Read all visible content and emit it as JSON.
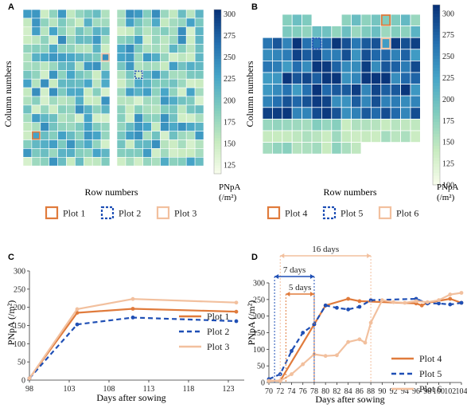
{
  "panels": {
    "a": "A",
    "b": "B",
    "c": "C",
    "d": "D"
  },
  "heatmap_common": {
    "xlabel": "Row numbers",
    "ylabel": "Column numbers",
    "colorbar_title": "PNpA",
    "colorbar_unit": "(/m²)"
  },
  "legend_ab": {
    "a_items": [
      {
        "label": "Plot 1",
        "color": "#e07b3c",
        "style": "solid"
      },
      {
        "label": "Plot 2",
        "color": "#1f4fb5",
        "style": "dashed"
      },
      {
        "label": "Plot 3",
        "color": "#f2c09e",
        "style": "solid"
      }
    ],
    "b_items": [
      {
        "label": "Plot 4",
        "color": "#e07b3c",
        "style": "solid"
      },
      {
        "label": "Plot 5",
        "color": "#1f4fb5",
        "style": "dashed"
      },
      {
        "label": "Plot 6",
        "color": "#f2c09e",
        "style": "solid"
      }
    ]
  },
  "chart_data": [
    {
      "type": "heatmap",
      "panel": "A",
      "xlabel": "Row numbers",
      "ylabel": "Column numbers",
      "colorbar_ticks": [
        125,
        150,
        175,
        200,
        225,
        250,
        275,
        300
      ],
      "colorbar_range": [
        115,
        305
      ],
      "grid": "2 blocks of 10 x 18 plots separated by an alley"
    },
    {
      "type": "heatmap",
      "panel": "B",
      "xlabel": "Row numbers",
      "ylabel": "Column numbers",
      "colorbar_ticks": [
        100,
        125,
        150,
        175,
        200,
        225,
        250,
        275,
        300
      ],
      "colorbar_range": [
        100,
        310
      ],
      "grid": "16 x 12 plots, top-left and bottom-right corners empty"
    },
    {
      "type": "line",
      "panel": "C",
      "xlabel": "Days after sowing",
      "ylabel": "PNpA (/m²)",
      "xlim": [
        98,
        125
      ],
      "ylim": [
        0,
        300
      ],
      "xticks": [
        98,
        103,
        108,
        113,
        118,
        123
      ],
      "yticks": [
        0,
        50,
        100,
        150,
        200,
        250,
        300
      ],
      "x": [
        98,
        104,
        111,
        124
      ],
      "series": [
        {
          "name": "Plot 1",
          "color": "#e07b3c",
          "dash": "solid",
          "values": [
            5,
            185,
            196,
            188
          ]
        },
        {
          "name": "Plot 2",
          "color": "#1f4fb5",
          "dash": "dashed",
          "values": [
            5,
            153,
            172,
            162
          ]
        },
        {
          "name": "Plot 3",
          "color": "#f2c09e",
          "dash": "solid",
          "values": [
            5,
            195,
            223,
            213
          ]
        }
      ]
    },
    {
      "type": "line",
      "panel": "D",
      "xlabel": "Days after sowing",
      "ylabel": "PNpA (/m²)",
      "xlim": [
        70,
        104
      ],
      "ylim": [
        0,
        300
      ],
      "xticks": [
        70,
        72,
        74,
        76,
        78,
        80,
        82,
        84,
        86,
        88,
        90,
        92,
        94,
        96,
        98,
        100,
        102,
        104
      ],
      "yticks": [
        0,
        50,
        100,
        150,
        200,
        250,
        300
      ],
      "series": [
        {
          "name": "Plot 4",
          "color": "#e07b3c",
          "dash": "solid",
          "x": [
            70,
            72,
            78,
            80,
            84,
            86,
            96,
            97,
            98,
            102,
            104
          ],
          "values": [
            5,
            5,
            175,
            232,
            252,
            245,
            238,
            232,
            240,
            252,
            240
          ]
        },
        {
          "name": "Plot 5",
          "color": "#1f4fb5",
          "dash": "dashed",
          "x": [
            70,
            72,
            74,
            76,
            78,
            80,
            82,
            84,
            86,
            88,
            96,
            98,
            100,
            102,
            104
          ],
          "values": [
            10,
            25,
            95,
            150,
            175,
            232,
            225,
            220,
            228,
            248,
            252,
            238,
            238,
            235,
            240
          ]
        },
        {
          "name": "Plot 6",
          "color": "#f2c09e",
          "dash": "solid",
          "x": [
            70,
            72,
            74,
            76,
            78,
            80,
            82,
            84,
            86,
            87,
            88,
            90,
            92,
            94,
            96,
            98,
            100,
            102,
            104
          ],
          "values": [
            5,
            5,
            25,
            55,
            85,
            80,
            82,
            122,
            130,
            120,
            180,
            248,
            242,
            240,
            245,
            242,
            248,
            265,
            270
          ]
        }
      ],
      "annotations": [
        {
          "text": "16 days",
          "from": 72,
          "to": 88,
          "color": "#f2c09e"
        },
        {
          "text": "7 days",
          "from": 71,
          "to": 78,
          "color": "#1f4fb5"
        },
        {
          "text": "5 days",
          "from": 73,
          "to": 78,
          "color": "#e07b3c"
        }
      ]
    }
  ]
}
